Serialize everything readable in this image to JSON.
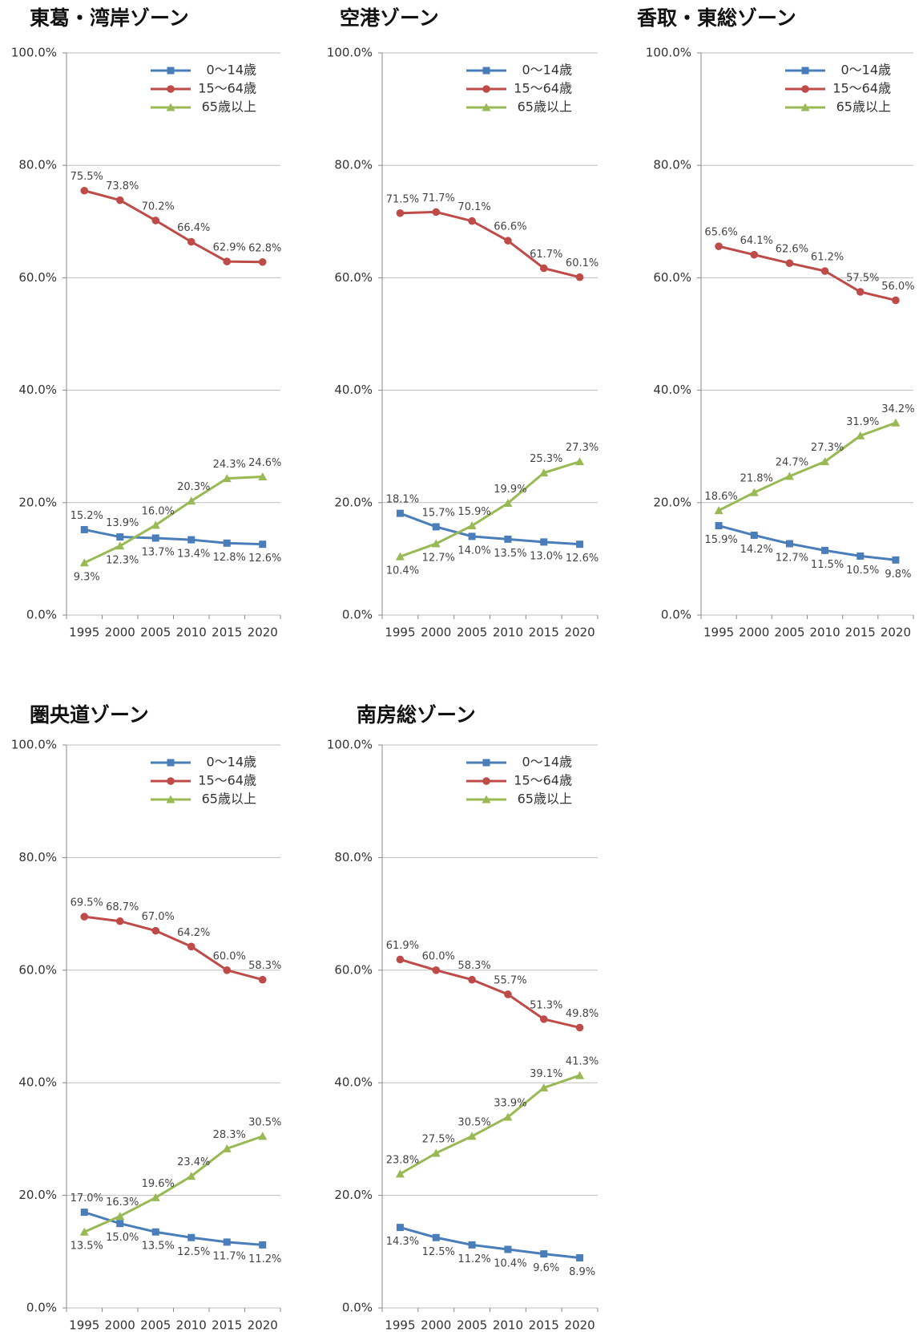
{
  "chart_data": [
    {
      "type": "line",
      "title": "東葛・湾岸ゾーン",
      "categories": [
        "1995",
        "2000",
        "2005",
        "2010",
        "2015",
        "2020"
      ],
      "ylim": [
        0,
        100
      ],
      "yticks": [
        {
          "value": 0,
          "label": "0.0%"
        },
        {
          "value": 20,
          "label": "20.0%"
        },
        {
          "value": 40,
          "label": "40.0%"
        },
        {
          "value": 60,
          "label": "60.0%"
        },
        {
          "value": 80,
          "label": "80.0%"
        },
        {
          "value": 100,
          "label": "100.0%"
        }
      ],
      "grid": true,
      "series": [
        {
          "name": "0〜14歳",
          "color": "#4a7ebb",
          "marker": "square",
          "values": [
            15.2,
            13.9,
            13.7,
            13.4,
            12.8,
            12.6
          ],
          "value_labels": [
            "15.2%",
            "13.9%",
            "13.7%",
            "13.4%",
            "12.8%",
            "12.6%"
          ]
        },
        {
          "name": "15〜64歳",
          "color": "#be4b48",
          "marker": "circle",
          "values": [
            75.5,
            73.8,
            70.2,
            66.4,
            62.9,
            62.8
          ],
          "value_labels": [
            "75.5%",
            "73.8%",
            "70.2%",
            "66.4%",
            "62.9%",
            "62.8%"
          ]
        },
        {
          "name": "65歳以上",
          "color": "#98b954",
          "marker": "triangle",
          "values": [
            9.3,
            12.3,
            16.0,
            20.3,
            24.3,
            24.6
          ],
          "value_labels": [
            "9.3%",
            "12.3%",
            "16.0%",
            "20.3%",
            "24.3%",
            "24.6%"
          ]
        }
      ]
    },
    {
      "type": "line",
      "title": "空港ゾーン",
      "categories": [
        "1995",
        "2000",
        "2005",
        "2010",
        "2015",
        "2020"
      ],
      "ylim": [
        0,
        100
      ],
      "yticks": [
        {
          "value": 0,
          "label": "0.0%"
        },
        {
          "value": 20,
          "label": "20.0%"
        },
        {
          "value": 40,
          "label": "40.0%"
        },
        {
          "value": 60,
          "label": "60.0%"
        },
        {
          "value": 80,
          "label": "80.0%"
        },
        {
          "value": 100,
          "label": "100.0%"
        }
      ],
      "grid": true,
      "series": [
        {
          "name": "0〜14歳",
          "color": "#4a7ebb",
          "marker": "square",
          "values": [
            18.1,
            15.7,
            14.0,
            13.5,
            13.0,
            12.6
          ],
          "value_labels": [
            "18.1%",
            "15.7%",
            "14.0%",
            "13.5%",
            "13.0%",
            "12.6%"
          ]
        },
        {
          "name": "15〜64歳",
          "color": "#be4b48",
          "marker": "circle",
          "values": [
            71.5,
            71.7,
            70.1,
            66.6,
            61.7,
            60.1
          ],
          "value_labels": [
            "71.5%",
            "71.7%",
            "70.1%",
            "66.6%",
            "61.7%",
            "60.1%"
          ]
        },
        {
          "name": "65歳以上",
          "color": "#98b954",
          "marker": "triangle",
          "values": [
            10.4,
            12.7,
            15.9,
            19.9,
            25.3,
            27.3
          ],
          "value_labels": [
            "10.4%",
            "12.7%",
            "15.9%",
            "19.9%",
            "25.3%",
            "27.3%"
          ]
        }
      ]
    },
    {
      "type": "line",
      "title": "香取・東総ゾーン",
      "categories": [
        "1995",
        "2000",
        "2005",
        "2010",
        "2015",
        "2020"
      ],
      "ylim": [
        0,
        100
      ],
      "yticks": [
        {
          "value": 0,
          "label": "0.0%"
        },
        {
          "value": 20,
          "label": "20.0%"
        },
        {
          "value": 40,
          "label": "40.0%"
        },
        {
          "value": 60,
          "label": "60.0%"
        },
        {
          "value": 80,
          "label": "80.0%"
        },
        {
          "value": 100,
          "label": "100.0%"
        }
      ],
      "grid": true,
      "series": [
        {
          "name": "0〜14歳",
          "color": "#4a7ebb",
          "marker": "square",
          "values": [
            15.9,
            14.2,
            12.7,
            11.5,
            10.5,
            9.8
          ],
          "value_labels": [
            "15.9%",
            "14.2%",
            "12.7%",
            "11.5%",
            "10.5%",
            "9.8%"
          ]
        },
        {
          "name": "15〜64歳",
          "color": "#be4b48",
          "marker": "circle",
          "values": [
            65.6,
            64.1,
            62.6,
            61.2,
            57.5,
            56.0
          ],
          "value_labels": [
            "65.6%",
            "64.1%",
            "62.6%",
            "61.2%",
            "57.5%",
            "56.0%"
          ]
        },
        {
          "name": "65歳以上",
          "color": "#98b954",
          "marker": "triangle",
          "values": [
            18.6,
            21.8,
            24.7,
            27.3,
            31.9,
            34.2
          ],
          "value_labels": [
            "18.6%",
            "21.8%",
            "24.7%",
            "27.3%",
            "31.9%",
            "34.2%"
          ]
        }
      ]
    },
    {
      "type": "line",
      "title": "圏央道ゾーン",
      "categories": [
        "1995",
        "2000",
        "2005",
        "2010",
        "2015",
        "2020"
      ],
      "ylim": [
        0,
        100
      ],
      "yticks": [
        {
          "value": 0,
          "label": "0.0%"
        },
        {
          "value": 20,
          "label": "20.0%"
        },
        {
          "value": 40,
          "label": "40.0%"
        },
        {
          "value": 60,
          "label": "60.0%"
        },
        {
          "value": 80,
          "label": "80.0%"
        },
        {
          "value": 100,
          "label": "100.0%"
        }
      ],
      "grid": true,
      "series": [
        {
          "name": "0〜14歳",
          "color": "#4a7ebb",
          "marker": "square",
          "values": [
            17.0,
            15.0,
            13.5,
            12.5,
            11.7,
            11.2
          ],
          "value_labels": [
            "17.0%",
            "15.0%",
            "13.5%",
            "12.5%",
            "11.7%",
            "11.2%"
          ]
        },
        {
          "name": "15〜64歳",
          "color": "#be4b48",
          "marker": "circle",
          "values": [
            69.5,
            68.7,
            67.0,
            64.2,
            60.0,
            58.3
          ],
          "value_labels": [
            "69.5%",
            "68.7%",
            "67.0%",
            "64.2%",
            "60.0%",
            "58.3%"
          ]
        },
        {
          "name": "65歳以上",
          "color": "#98b954",
          "marker": "triangle",
          "values": [
            13.5,
            16.3,
            19.6,
            23.4,
            28.3,
            30.5
          ],
          "value_labels": [
            "13.5%",
            "16.3%",
            "19.6%",
            "23.4%",
            "28.3%",
            "30.5%"
          ]
        }
      ]
    },
    {
      "type": "line",
      "title": "南房総ゾーン",
      "categories": [
        "1995",
        "2000",
        "2005",
        "2010",
        "2015",
        "2020"
      ],
      "ylim": [
        0,
        100
      ],
      "yticks": [
        {
          "value": 0,
          "label": "0.0%"
        },
        {
          "value": 20,
          "label": "20.0%"
        },
        {
          "value": 40,
          "label": "40.0%"
        },
        {
          "value": 60,
          "label": "60.0%"
        },
        {
          "value": 80,
          "label": "80.0%"
        },
        {
          "value": 100,
          "label": "100.0%"
        }
      ],
      "grid": true,
      "series": [
        {
          "name": "0〜14歳",
          "color": "#4a7ebb",
          "marker": "square",
          "values": [
            14.3,
            12.5,
            11.2,
            10.4,
            9.6,
            8.9
          ],
          "value_labels": [
            "14.3%",
            "12.5%",
            "11.2%",
            "10.4%",
            "9.6%",
            "8.9%"
          ]
        },
        {
          "name": "15〜64歳",
          "color": "#be4b48",
          "marker": "circle",
          "values": [
            61.9,
            60.0,
            58.3,
            55.7,
            51.3,
            49.8
          ],
          "value_labels": [
            "61.9%",
            "60.0%",
            "58.3%",
            "55.7%",
            "51.3%",
            "49.8%"
          ]
        },
        {
          "name": "65歳以上",
          "color": "#98b954",
          "marker": "triangle",
          "values": [
            23.8,
            27.5,
            30.5,
            33.9,
            39.1,
            41.3
          ],
          "value_labels": [
            "23.8%",
            "27.5%",
            "30.5%",
            "33.9%",
            "39.1%",
            "41.3%"
          ]
        }
      ]
    }
  ]
}
